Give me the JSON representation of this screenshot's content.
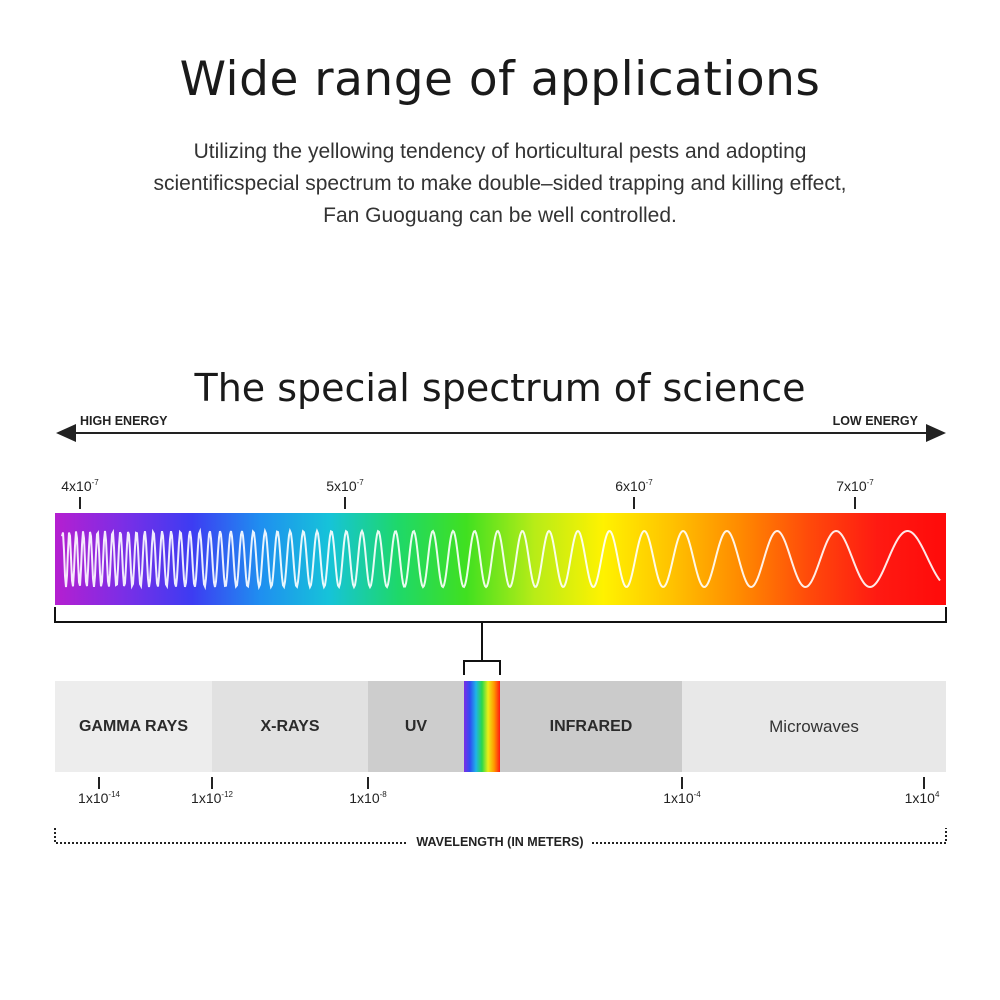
{
  "header": {
    "title": "Wide range of applications",
    "description_lines": [
      "Utilizing the yellowing tendency of horticultural pests and adopting",
      "scientificspecial spectrum to make double–sided trapping and killing effect,",
      "Fan Guoguang can be well controlled."
    ]
  },
  "diagram": {
    "title": "The special spectrum of science",
    "energy_left": "HIGH ENERGY",
    "energy_right": "LOW ENERGY",
    "visible_ticks": [
      {
        "mantissa": "4x10",
        "exp": "-7"
      },
      {
        "mantissa": "5x10",
        "exp": "-7"
      },
      {
        "mantissa": "6x10",
        "exp": "-7"
      },
      {
        "mantissa": "7x10",
        "exp": "-7"
      }
    ],
    "bands": [
      {
        "label": "GAMMA RAYS",
        "color": "#ededed"
      },
      {
        "label": "X-RAYS",
        "color": "#e1e1e1"
      },
      {
        "label": "UV",
        "color": "#cdcdcd"
      },
      {
        "label": "INFRARED",
        "color": "#cbcbcb"
      },
      {
        "label": "Microwaves",
        "color": "#e8e8e8"
      }
    ],
    "wavelength_ticks": [
      {
        "mantissa": "1x10",
        "exp": "-14"
      },
      {
        "mantissa": "1x10",
        "exp": "-12"
      },
      {
        "mantissa": "1x10",
        "exp": "-8"
      },
      {
        "mantissa": "1x10",
        "exp": "-4"
      },
      {
        "mantissa": "1x10",
        "exp": "4"
      }
    ],
    "axis_label": "WAVELENGTH (IN METERS)",
    "spectrum_colors": [
      "#b51fd0",
      "#7b2ee6",
      "#3d3cf2",
      "#1f8ff0",
      "#16c3d9",
      "#1ed86a",
      "#40e020",
      "#b8ec17",
      "#fff200",
      "#ffc200",
      "#ff8a00",
      "#ff4a0a",
      "#ff1a12",
      "#ff0a0a"
    ]
  }
}
